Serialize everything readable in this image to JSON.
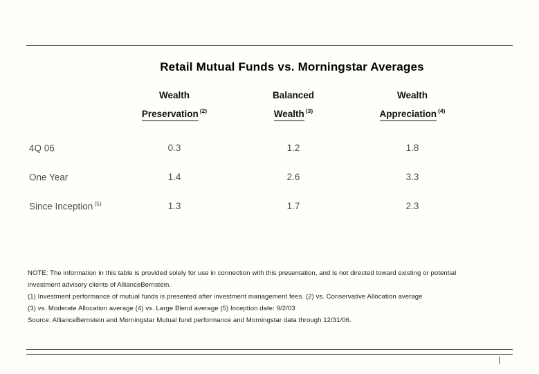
{
  "title": "Retail Mutual Funds vs. Morningstar Averages",
  "table": {
    "columns": [
      {
        "line1": "Wealth",
        "line2": "Preservation",
        "sup": "(2)"
      },
      {
        "line1": "Balanced",
        "line2": "Wealth",
        "sup": "(3)"
      },
      {
        "line1": "Wealth",
        "line2": "Appreciation",
        "sup": "(4)"
      }
    ],
    "rows": [
      {
        "label": "4Q 06",
        "sup": "",
        "values": [
          "0.3",
          "1.2",
          "1.8"
        ]
      },
      {
        "label": "One Year",
        "sup": "",
        "values": [
          "1.4",
          "2.6",
          "3.3"
        ]
      },
      {
        "label": "Since Inception",
        "sup": "(5)",
        "values": [
          "1.3",
          "1.7",
          "2.3"
        ]
      }
    ]
  },
  "notes": [
    "NOTE:  The information in this table is provided solely for use in connection with this presentation, and is not directed toward existing or potential",
    "investment advisory clients of AllianceBernstein.",
    "(1) Investment performance of mutual funds is presented after investment management fees. (2) vs. Conservative Allocation average",
    "(3) vs. Moderate Allocation average (4) vs. Large Blend average (5) Inception date: 9/2/03",
    "Source: AllianceBernstein and Morningstar Mutual fund performance and Morningstar data through 12/31/06."
  ],
  "footer": {
    "page_marker": "|"
  }
}
